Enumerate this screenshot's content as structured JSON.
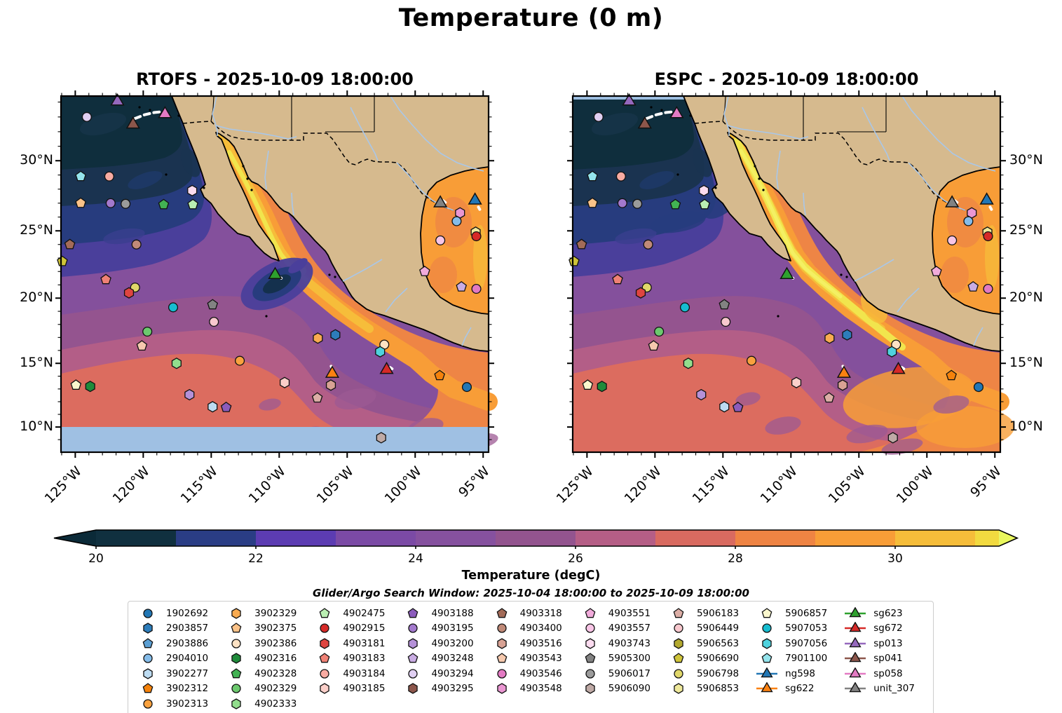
{
  "title": "Temperature (0 m)",
  "search_window_text": "Glider/Argo Search Window: 2025-10-04 18:00:00 to 2025-10-09 18:00:00",
  "chart_data": {
    "type": "heatmap",
    "description": "Two-panel sea-surface temperature model comparison map (Mercator projection) with Argo float and glider positions",
    "panels": [
      {
        "id": "rtofs",
        "title": "RTOFS - 2025-10-09 18:00:00"
      },
      {
        "id": "espc",
        "title": "ESPC - 2025-10-09 18:00:00"
      }
    ],
    "axes": {
      "lon_range_west": [
        126.05,
        94.6
      ],
      "lat_range": [
        8.0,
        34.4
      ],
      "lat_ticks": [
        {
          "value": 30,
          "label": "30°N"
        },
        {
          "value": 25,
          "label": "25°N"
        },
        {
          "value": 20,
          "label": "20°N"
        },
        {
          "value": 15,
          "label": "15°N"
        },
        {
          "value": 10,
          "label": "10°N"
        }
      ],
      "lon_ticks": [
        {
          "value": 125,
          "label": "125°W"
        },
        {
          "value": 120,
          "label": "120°W"
        },
        {
          "value": 115,
          "label": "115°W"
        },
        {
          "value": 110,
          "label": "110°W"
        },
        {
          "value": 105,
          "label": "105°W"
        },
        {
          "value": 100,
          "label": "100°W"
        },
        {
          "value": 95,
          "label": "95°W"
        }
      ]
    },
    "colorbar": {
      "label": "Temperature (degC)",
      "ticks": [
        {
          "value": 20,
          "label": "20"
        },
        {
          "value": 22,
          "label": "22"
        },
        {
          "value": 24,
          "label": "24"
        },
        {
          "value": 26,
          "label": "26"
        },
        {
          "value": 28,
          "label": "28"
        },
        {
          "value": 30,
          "label": "30"
        }
      ],
      "range": [
        20,
        31.3
      ],
      "segment_colors": [
        "#10303f",
        "#2a3d85",
        "#5c3cb2",
        "#7b4aa5",
        "#86519f",
        "#93548f",
        "#b55e86",
        "#d96a60",
        "#ef8443",
        "#f89d37",
        "#f6bd3a",
        "#f2da40"
      ],
      "under_color": "#0b2a38",
      "over_color": "#e9f75d"
    },
    "map_colors": {
      "land": "#d6ba8e",
      "coast": "#000000",
      "river": "#a9c7e9",
      "no_data_band": "#9fc0e3"
    },
    "legend_columns": [
      [
        {
          "id": "1902692",
          "shape": "circle",
          "color": "#2277b5"
        },
        {
          "id": "2903857",
          "shape": "hexagon",
          "color": "#2d7dbb"
        },
        {
          "id": "2903886",
          "shape": "pentagon",
          "color": "#5b9fd3"
        },
        {
          "id": "2904010",
          "shape": "circle",
          "color": "#85bce9"
        },
        {
          "id": "3902277",
          "shape": "hexagon",
          "color": "#bddcf2"
        },
        {
          "id": "3902312",
          "shape": "pentagon",
          "color": "#f5820b"
        },
        {
          "id": "3902313",
          "shape": "circle",
          "color": "#f9a13e"
        }
      ],
      [
        {
          "id": "3902329",
          "shape": "hexagon",
          "color": "#f9ab50"
        },
        {
          "id": "3902375",
          "shape": "pentagon",
          "color": "#fbc288"
        },
        {
          "id": "3902386",
          "shape": "circle",
          "color": "#fde2c4"
        },
        {
          "id": "4902316",
          "shape": "hexagon",
          "color": "#1f8b3b"
        },
        {
          "id": "4902328",
          "shape": "pentagon",
          "color": "#42b253"
        },
        {
          "id": "4902329",
          "shape": "circle",
          "color": "#6cc96e"
        },
        {
          "id": "4902333",
          "shape": "hexagon",
          "color": "#92de8d"
        }
      ],
      [
        {
          "id": "4902475",
          "shape": "pentagon",
          "color": "#baeeb2"
        },
        {
          "id": "4902915",
          "shape": "circle",
          "color": "#d62a28"
        },
        {
          "id": "4903181",
          "shape": "hexagon",
          "color": "#de4540"
        },
        {
          "id": "4903183",
          "shape": "pentagon",
          "color": "#ef8175"
        },
        {
          "id": "4903184",
          "shape": "circle",
          "color": "#f8aba2"
        },
        {
          "id": "4903185",
          "shape": "hexagon",
          "color": "#fbcfc9"
        }
      ],
      [
        {
          "id": "4903188",
          "shape": "pentagon",
          "color": "#8c5cbc"
        },
        {
          "id": "4903195",
          "shape": "circle",
          "color": "#a379cd"
        },
        {
          "id": "4903200",
          "shape": "hexagon",
          "color": "#b591d8"
        },
        {
          "id": "4903248",
          "shape": "pentagon",
          "color": "#c9ace3"
        },
        {
          "id": "4903294",
          "shape": "circle",
          "color": "#e0cff2"
        },
        {
          "id": "4903295",
          "shape": "hexagon",
          "color": "#8c564b"
        }
      ],
      [
        {
          "id": "4903318",
          "shape": "pentagon",
          "color": "#a36b58"
        },
        {
          "id": "4903400",
          "shape": "circle",
          "color": "#c08a78"
        },
        {
          "id": "4903516",
          "shape": "hexagon",
          "color": "#d8a294"
        },
        {
          "id": "4903543",
          "shape": "pentagon",
          "color": "#f6c9ae"
        },
        {
          "id": "4903546",
          "shape": "circle",
          "color": "#e37ac3"
        },
        {
          "id": "4903548",
          "shape": "hexagon",
          "color": "#ea96d2"
        }
      ],
      [
        {
          "id": "4903551",
          "shape": "pentagon",
          "color": "#f1abdb"
        },
        {
          "id": "4903557",
          "shape": "circle",
          "color": "#f8c5e6"
        },
        {
          "id": "4903743",
          "shape": "hexagon",
          "color": "#fcdcf0"
        },
        {
          "id": "5905300",
          "shape": "pentagon",
          "color": "#828282"
        },
        {
          "id": "5906017",
          "shape": "circle",
          "color": "#9b9b9b"
        },
        {
          "id": "5906090",
          "shape": "hexagon",
          "color": "#bfaaa6"
        }
      ],
      [
        {
          "id": "5906183",
          "shape": "pentagon",
          "color": "#dcaea6"
        },
        {
          "id": "5906449",
          "shape": "circle",
          "color": "#f8c8ce"
        },
        {
          "id": "5906563",
          "shape": "hexagon",
          "color": "#b3a92f"
        },
        {
          "id": "5906690",
          "shape": "pentagon",
          "color": "#cfc43a"
        },
        {
          "id": "5906798",
          "shape": "circle",
          "color": "#e0d76a"
        },
        {
          "id": "5906853",
          "shape": "hexagon",
          "color": "#efe99b"
        }
      ],
      [
        {
          "id": "5906857",
          "shape": "pentagon",
          "color": "#faf7cd"
        },
        {
          "id": "5907053",
          "shape": "circle",
          "color": "#16bdd0"
        },
        {
          "id": "5907056",
          "shape": "hexagon",
          "color": "#4fd2de"
        },
        {
          "id": "7901100",
          "shape": "pentagon",
          "color": "#94e4ec"
        },
        {
          "id": "ng598",
          "shape": "triangle",
          "color": "#2277b5",
          "line": true
        },
        {
          "id": "sg622",
          "shape": "triangle",
          "color": "#fb8111",
          "line": true
        }
      ],
      [
        {
          "id": "sg623",
          "shape": "triangle",
          "color": "#2ea12e",
          "line": true
        },
        {
          "id": "sg672",
          "shape": "triangle",
          "color": "#d62a28",
          "line": true
        },
        {
          "id": "sp013",
          "shape": "triangle",
          "color": "#9568bd",
          "line": true
        },
        {
          "id": "sp041",
          "shape": "triangle",
          "color": "#8c564b",
          "line": true
        },
        {
          "id": "sp058",
          "shape": "triangle",
          "color": "#e37ac3",
          "line": true
        },
        {
          "id": "unit_307",
          "shape": "triangle",
          "color": "#828282",
          "line": true
        }
      ]
    ],
    "markers": [
      {
        "id": "sp013",
        "lon_w": 121.9,
        "lat": 34.05
      },
      {
        "id": "4903294",
        "lon_w": 124.15,
        "lat": 33.0
      },
      {
        "id": "sp041",
        "lon_w": 120.75,
        "lat": 32.5
      },
      {
        "id": "sp058",
        "lon_w": 118.4,
        "lat": 33.2
      },
      {
        "id": "7901100",
        "lon_w": 124.6,
        "lat": 28.9
      },
      {
        "id": "4903184",
        "lon_w": 122.5,
        "lat": 28.9
      },
      {
        "id": "4903743",
        "lon_w": 116.4,
        "lat": 27.9
      },
      {
        "id": "3902375",
        "lon_w": 124.6,
        "lat": 27.0
      },
      {
        "id": "4903195",
        "lon_w": 122.4,
        "lat": 27.0
      },
      {
        "id": "5906017",
        "lon_w": 121.3,
        "lat": 26.95
      },
      {
        "id": "4902328",
        "lon_w": 118.5,
        "lat": 26.9
      },
      {
        "id": "4902475",
        "lon_w": 116.35,
        "lat": 26.9
      },
      {
        "id": "4903318",
        "lon_w": 125.4,
        "lat": 24.0
      },
      {
        "id": "4903400",
        "lon_w": 120.5,
        "lat": 24.0
      },
      {
        "id": "5906690",
        "lon_w": 125.95,
        "lat": 22.75
      },
      {
        "id": "4903183",
        "lon_w": 122.75,
        "lat": 21.4
      },
      {
        "id": "5906798",
        "lon_w": 120.6,
        "lat": 20.8
      },
      {
        "id": "4903181",
        "lon_w": 121.05,
        "lat": 20.4
      },
      {
        "id": "sg623",
        "lon_w": 110.3,
        "lat": 21.75
      },
      {
        "id": "5907053",
        "lon_w": 117.8,
        "lat": 19.3
      },
      {
        "id": "5905300",
        "lon_w": 114.9,
        "lat": 19.5
      },
      {
        "id": "5906449",
        "lon_w": 114.8,
        "lat": 18.2
      },
      {
        "id": "4902329",
        "lon_w": 119.7,
        "lat": 17.45
      },
      {
        "id": "4903543",
        "lon_w": 120.1,
        "lat": 16.35
      },
      {
        "id": "4902333",
        "lon_w": 117.55,
        "lat": 15.0
      },
      {
        "id": "3902313",
        "lon_w": 112.9,
        "lat": 15.2
      },
      {
        "id": "5906857",
        "lon_w": 124.95,
        "lat": 13.3
      },
      {
        "id": "4902316",
        "lon_w": 123.9,
        "lat": 13.2
      },
      {
        "id": "4903200",
        "lon_w": 116.6,
        "lat": 12.55
      },
      {
        "id": "3902277",
        "lon_w": 114.9,
        "lat": 11.6
      },
      {
        "id": "4903188",
        "lon_w": 113.9,
        "lat": 11.55
      },
      {
        "id": "5906183",
        "lon_w": 107.2,
        "lat": 12.3
      },
      {
        "id": "4903185",
        "lon_w": 109.6,
        "lat": 13.5
      },
      {
        "id": "2903857",
        "lon_w": 105.87,
        "lat": 17.2
      },
      {
        "id": "3902329",
        "lon_w": 107.16,
        "lat": 16.95
      },
      {
        "id": "3902386",
        "lon_w": 102.27,
        "lat": 16.45
      },
      {
        "id": "5907056",
        "lon_w": 102.58,
        "lat": 15.9
      },
      {
        "id": "sg622",
        "lon_w": 106.1,
        "lat": 14.2
      },
      {
        "id": "sg672",
        "lon_w": 102.1,
        "lat": 14.5
      },
      {
        "id": "4903516",
        "lon_w": 106.2,
        "lat": 13.3
      },
      {
        "id": "3902312",
        "lon_w": 98.2,
        "lat": 14.05
      },
      {
        "id": "1902692",
        "lon_w": 96.2,
        "lat": 13.15
      },
      {
        "id": "5906090",
        "lon_w": 102.5,
        "lat": 9.15
      },
      {
        "id": "unit_307",
        "lon_w": 98.15,
        "lat": 27.0
      },
      {
        "id": "ng598",
        "lon_w": 95.6,
        "lat": 27.2
      },
      {
        "id": "4903548",
        "lon_w": 96.7,
        "lat": 26.3
      },
      {
        "id": "2904010",
        "lon_w": 96.95,
        "lat": 25.7
      },
      {
        "id": "5906853",
        "lon_w": 95.55,
        "lat": 24.9
      },
      {
        "id": "4902915",
        "lon_w": 95.5,
        "lat": 24.6
      },
      {
        "id": "4903557",
        "lon_w": 98.15,
        "lat": 24.3
      },
      {
        "id": "4903551",
        "lon_w": 99.3,
        "lat": 22.0
      },
      {
        "id": "4903248",
        "lon_w": 96.6,
        "lat": 20.85
      },
      {
        "id": "4903546",
        "lon_w": 95.5,
        "lat": 20.7
      }
    ],
    "glider_tracks": [
      [
        [
          120.6,
          32.9
        ],
        [
          119.9,
          33.15
        ],
        [
          119.2,
          33.3
        ],
        [
          118.65,
          33.35
        ]
      ],
      [
        [
          110.05,
          21.62
        ],
        [
          109.85,
          21.5
        ]
      ],
      [
        [
          106.18,
          14.78
        ],
        [
          106.08,
          14.55
        ]
      ],
      [
        [
          101.85,
          14.68
        ],
        [
          101.7,
          14.58
        ]
      ],
      [
        [
          97.95,
          27.18
        ],
        [
          97.78,
          27.05
        ]
      ],
      [
        [
          95.35,
          26.72
        ],
        [
          95.25,
          26.55
        ]
      ]
    ]
  }
}
